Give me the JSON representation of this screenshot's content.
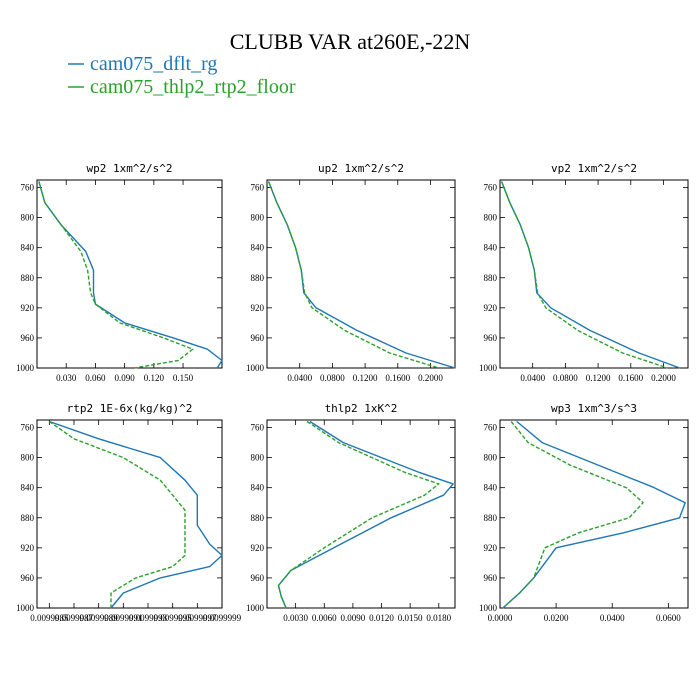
{
  "figure": {
    "title": "CLUBB VAR at260E,-22N",
    "legend": [
      {
        "label": "cam075_dflt_rg",
        "color": "#1f77b4",
        "dash": "solid"
      },
      {
        "label": "cam075_thlp2_rtp2_floor",
        "color": "#2ca02c",
        "dash": "dashed"
      }
    ]
  },
  "chart_data": [
    {
      "type": "line",
      "title": "wp2  1xm^2/s^2",
      "xlim": [
        0.0,
        0.19
      ],
      "ylim": [
        1000,
        750
      ],
      "xticks": [
        0.03,
        0.06,
        0.09,
        0.12,
        0.15
      ],
      "xticklabels": [
        "0.030",
        "0.060",
        "0.090",
        "0.120",
        "0.150"
      ],
      "yticks": [
        760,
        800,
        840,
        880,
        920,
        960,
        1000
      ],
      "series": [
        {
          "name": "cam075_dflt_rg",
          "y": [
            752,
            780,
            810,
            845,
            870,
            900,
            915,
            940,
            960,
            975,
            990,
            1000
          ],
          "x": [
            0.002,
            0.008,
            0.025,
            0.05,
            0.058,
            0.058,
            0.06,
            0.09,
            0.14,
            0.175,
            0.19,
            0.185
          ]
        },
        {
          "name": "cam075_thlp2_rtp2_floor",
          "y": [
            752,
            780,
            810,
            845,
            870,
            900,
            915,
            940,
            960,
            975,
            990,
            1000
          ],
          "x": [
            0.002,
            0.008,
            0.025,
            0.045,
            0.052,
            0.055,
            0.06,
            0.085,
            0.13,
            0.16,
            0.145,
            0.1
          ]
        }
      ]
    },
    {
      "type": "line",
      "title": "up2  1xm^2/s^2",
      "xlim": [
        0.0,
        0.23
      ],
      "ylim": [
        1000,
        750
      ],
      "xticks": [
        0.04,
        0.08,
        0.12,
        0.16,
        0.2
      ],
      "xticklabels": [
        "0.0400",
        "0.0800",
        "0.1200",
        "0.1600",
        "0.2000"
      ],
      "yticks": [
        760,
        800,
        840,
        880,
        920,
        960,
        1000
      ],
      "series": [
        {
          "name": "cam075_dflt_rg",
          "y": [
            752,
            780,
            810,
            840,
            870,
            900,
            920,
            950,
            980,
            1000
          ],
          "x": [
            0.002,
            0.012,
            0.025,
            0.035,
            0.042,
            0.045,
            0.06,
            0.11,
            0.17,
            0.23
          ]
        },
        {
          "name": "cam075_thlp2_rtp2_floor",
          "y": [
            752,
            780,
            810,
            840,
            870,
            900,
            920,
            950,
            980,
            1000
          ],
          "x": [
            0.002,
            0.012,
            0.025,
            0.035,
            0.042,
            0.046,
            0.055,
            0.095,
            0.15,
            0.21
          ]
        }
      ]
    },
    {
      "type": "line",
      "title": "vp2  1xm^2/s^2",
      "xlim": [
        0.0,
        0.23
      ],
      "ylim": [
        1000,
        750
      ],
      "xticks": [
        0.04,
        0.08,
        0.12,
        0.16,
        0.2
      ],
      "xticklabels": [
        "0.0400",
        "0.0800",
        "0.1200",
        "0.1600",
        "0.2000"
      ],
      "yticks": [
        760,
        800,
        840,
        880,
        920,
        960,
        1000
      ],
      "series": [
        {
          "name": "cam075_dflt_rg",
          "y": [
            752,
            780,
            810,
            840,
            870,
            900,
            920,
            950,
            980,
            1000
          ],
          "x": [
            0.002,
            0.012,
            0.025,
            0.035,
            0.042,
            0.045,
            0.062,
            0.11,
            0.17,
            0.22
          ]
        },
        {
          "name": "cam075_thlp2_rtp2_floor",
          "y": [
            752,
            780,
            810,
            840,
            870,
            900,
            920,
            950,
            980,
            1000
          ],
          "x": [
            0.002,
            0.012,
            0.025,
            0.035,
            0.042,
            0.046,
            0.056,
            0.095,
            0.15,
            0.205
          ]
        }
      ]
    },
    {
      "type": "line",
      "title": "rtp2  1E-6x(kg/kg)^2",
      "xlim": [
        0.0099984,
        0.0099999
      ],
      "ylim": [
        1000,
        750
      ],
      "xticks": [
        0.0099985,
        0.0099987,
        0.0099989,
        0.0099991,
        0.0099993,
        0.0099995,
        0.0099997,
        0.0099999
      ],
      "xticklabels": [
        "0.0099985",
        "0.0099987",
        "0.0099989",
        "0.0099991",
        "0.0099993",
        "0.0099995",
        "0.0099997",
        "0.0099999"
      ],
      "yticks": [
        760,
        800,
        840,
        880,
        920,
        960,
        1000
      ],
      "series": [
        {
          "name": "cam075_dflt_rg",
          "y": [
            752,
            775,
            800,
            830,
            850,
            870,
            890,
            915,
            930,
            945,
            960,
            980,
            1000
          ],
          "x": [
            0.0099985,
            0.0099989,
            0.0099994,
            0.0099996,
            0.0099997,
            0.0099997,
            0.0099997,
            0.0099998,
            0.0099999,
            0.0099998,
            0.0099994,
            0.0099991,
            0.009999
          ]
        },
        {
          "name": "cam075_thlp2_rtp2_floor",
          "y": [
            752,
            775,
            800,
            830,
            850,
            870,
            890,
            915,
            930,
            945,
            960,
            980,
            1000
          ],
          "x": [
            0.0099985,
            0.0099987,
            0.0099991,
            0.0099994,
            0.0099995,
            0.0099996,
            0.0099996,
            0.0099996,
            0.0099996,
            0.0099995,
            0.0099992,
            0.009999,
            0.009999
          ]
        }
      ]
    },
    {
      "type": "line",
      "title": "thlp2  1xK^2",
      "xlim": [
        0.0,
        0.0197
      ],
      "ylim": [
        1000,
        750
      ],
      "xticks": [
        0.003,
        0.006,
        0.009,
        0.012,
        0.015,
        0.018
      ],
      "xticklabels": [
        "0.0030",
        "0.0060",
        "0.0090",
        "0.0120",
        "0.0150",
        "0.0180"
      ],
      "yticks": [
        760,
        800,
        840,
        880,
        920,
        960,
        1000
      ],
      "series": [
        {
          "name": "cam075_dflt_rg",
          "y": [
            752,
            780,
            800,
            820,
            835,
            850,
            880,
            920,
            950,
            970,
            985,
            1000
          ],
          "x": [
            0.0045,
            0.008,
            0.012,
            0.016,
            0.0195,
            0.0185,
            0.013,
            0.007,
            0.0025,
            0.0012,
            0.0015,
            0.002
          ]
        },
        {
          "name": "cam075_thlp2_rtp2_floor",
          "y": [
            752,
            780,
            800,
            820,
            835,
            850,
            880,
            920,
            950,
            970,
            985,
            1000
          ],
          "x": [
            0.0042,
            0.0075,
            0.011,
            0.0145,
            0.018,
            0.0165,
            0.011,
            0.006,
            0.0025,
            0.0012,
            0.0015,
            0.002
          ]
        }
      ]
    },
    {
      "type": "line",
      "title": "wp3  1xm^3/s^3",
      "xlim": [
        0.0,
        0.067
      ],
      "ylim": [
        1000,
        750
      ],
      "xticks": [
        0.0,
        0.02,
        0.04,
        0.06
      ],
      "xticklabels": [
        "0.0000",
        "0.0200",
        "0.0400",
        "0.0600"
      ],
      "yticks": [
        760,
        800,
        840,
        880,
        920,
        960,
        1000
      ],
      "series": [
        {
          "name": "cam075_dflt_rg",
          "y": [
            752,
            780,
            810,
            840,
            860,
            880,
            900,
            920,
            940,
            960,
            980,
            1000
          ],
          "x": [
            0.006,
            0.015,
            0.035,
            0.055,
            0.066,
            0.064,
            0.044,
            0.02,
            0.016,
            0.012,
            0.007,
            0.001
          ]
        },
        {
          "name": "cam075_thlp2_rtp2_floor",
          "y": [
            752,
            780,
            810,
            840,
            860,
            880,
            900,
            920,
            940,
            960,
            980,
            1000
          ],
          "x": [
            0.004,
            0.01,
            0.025,
            0.045,
            0.051,
            0.046,
            0.028,
            0.016,
            0.014,
            0.012,
            0.007,
            0.001
          ]
        }
      ]
    }
  ]
}
